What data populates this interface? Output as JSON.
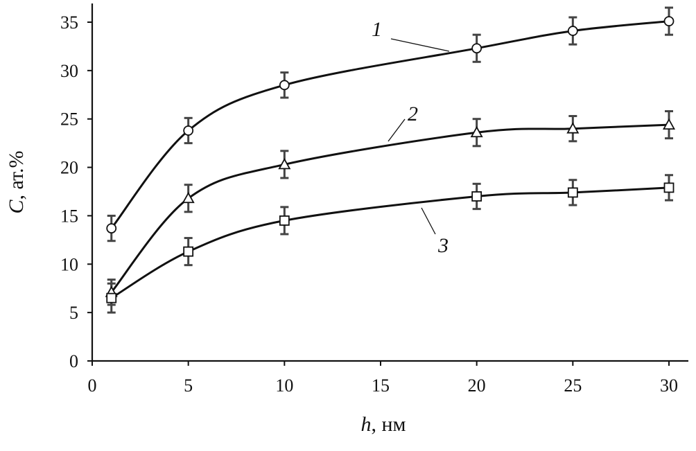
{
  "chart_data": {
    "type": "line",
    "title": "",
    "xlabel": {
      "var": "h",
      "unit": ", нм"
    },
    "ylabel": {
      "var": "C",
      "unit": ", ат.%"
    },
    "xlim": [
      0,
      30
    ],
    "ylim": [
      0,
      35
    ],
    "x_ticks": [
      0,
      5,
      10,
      15,
      20,
      25,
      30
    ],
    "y_ticks": [
      0,
      5,
      10,
      15,
      20,
      25,
      30,
      35
    ],
    "grid": false,
    "legend": "inline labels",
    "error_bars": true,
    "x": [
      1,
      5,
      10,
      20,
      25,
      30
    ],
    "series": [
      {
        "name": "1",
        "marker": "circle",
        "values": [
          13.7,
          23.8,
          28.5,
          32.3,
          34.1,
          35.1
        ],
        "error": [
          1.3,
          1.3,
          1.3,
          1.4,
          1.4,
          1.4
        ]
      },
      {
        "name": "2",
        "marker": "triangle",
        "values": [
          7.1,
          16.8,
          20.3,
          23.6,
          24.0,
          24.4
        ],
        "error": [
          1.3,
          1.4,
          1.4,
          1.4,
          1.3,
          1.4
        ]
      },
      {
        "name": "3",
        "marker": "square",
        "values": [
          6.5,
          11.3,
          14.5,
          17.0,
          17.4,
          17.9
        ],
        "error": [
          1.5,
          1.4,
          1.4,
          1.3,
          1.3,
          1.3
        ]
      }
    ]
  }
}
